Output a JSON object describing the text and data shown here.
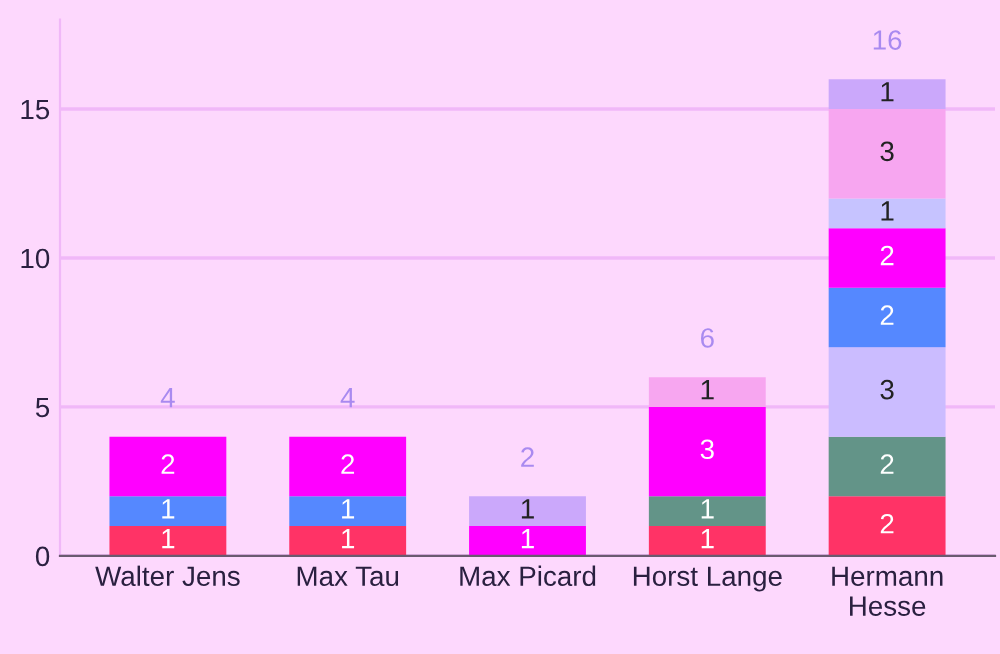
{
  "chart_data": {
    "type": "bar",
    "stacked": true,
    "categories": [
      "Walter Jens",
      "Max Tau",
      "Max Picard",
      "Horst Lange",
      "Hermann\nHesse"
    ],
    "series": [
      {
        "color": "#ff3366",
        "values": [
          1,
          1,
          null,
          1,
          2
        ]
      },
      {
        "color": "#639488",
        "values": [
          null,
          null,
          null,
          1,
          2
        ]
      },
      {
        "color": "#cbbcff",
        "values": [
          null,
          null,
          null,
          null,
          3
        ]
      },
      {
        "color": "#5588ff",
        "values": [
          1,
          1,
          null,
          null,
          2
        ]
      },
      {
        "color": "#ff00ff",
        "values": [
          2,
          2,
          1,
          3,
          2
        ]
      },
      {
        "color": "#c6c3ff",
        "values": [
          null,
          null,
          null,
          null,
          1
        ]
      },
      {
        "color": "#f7a6f0",
        "values": [
          null,
          null,
          null,
          1,
          3
        ]
      },
      {
        "color": "#cba8fb",
        "values": [
          null,
          null,
          1,
          null,
          1
        ]
      }
    ],
    "data_labels": true,
    "totals": [
      "4",
      "4",
      "2",
      "6",
      "16"
    ],
    "ylim": [
      0,
      18
    ],
    "yticks": [
      0,
      5,
      10,
      15
    ],
    "grid": "y",
    "legend": false
  }
}
